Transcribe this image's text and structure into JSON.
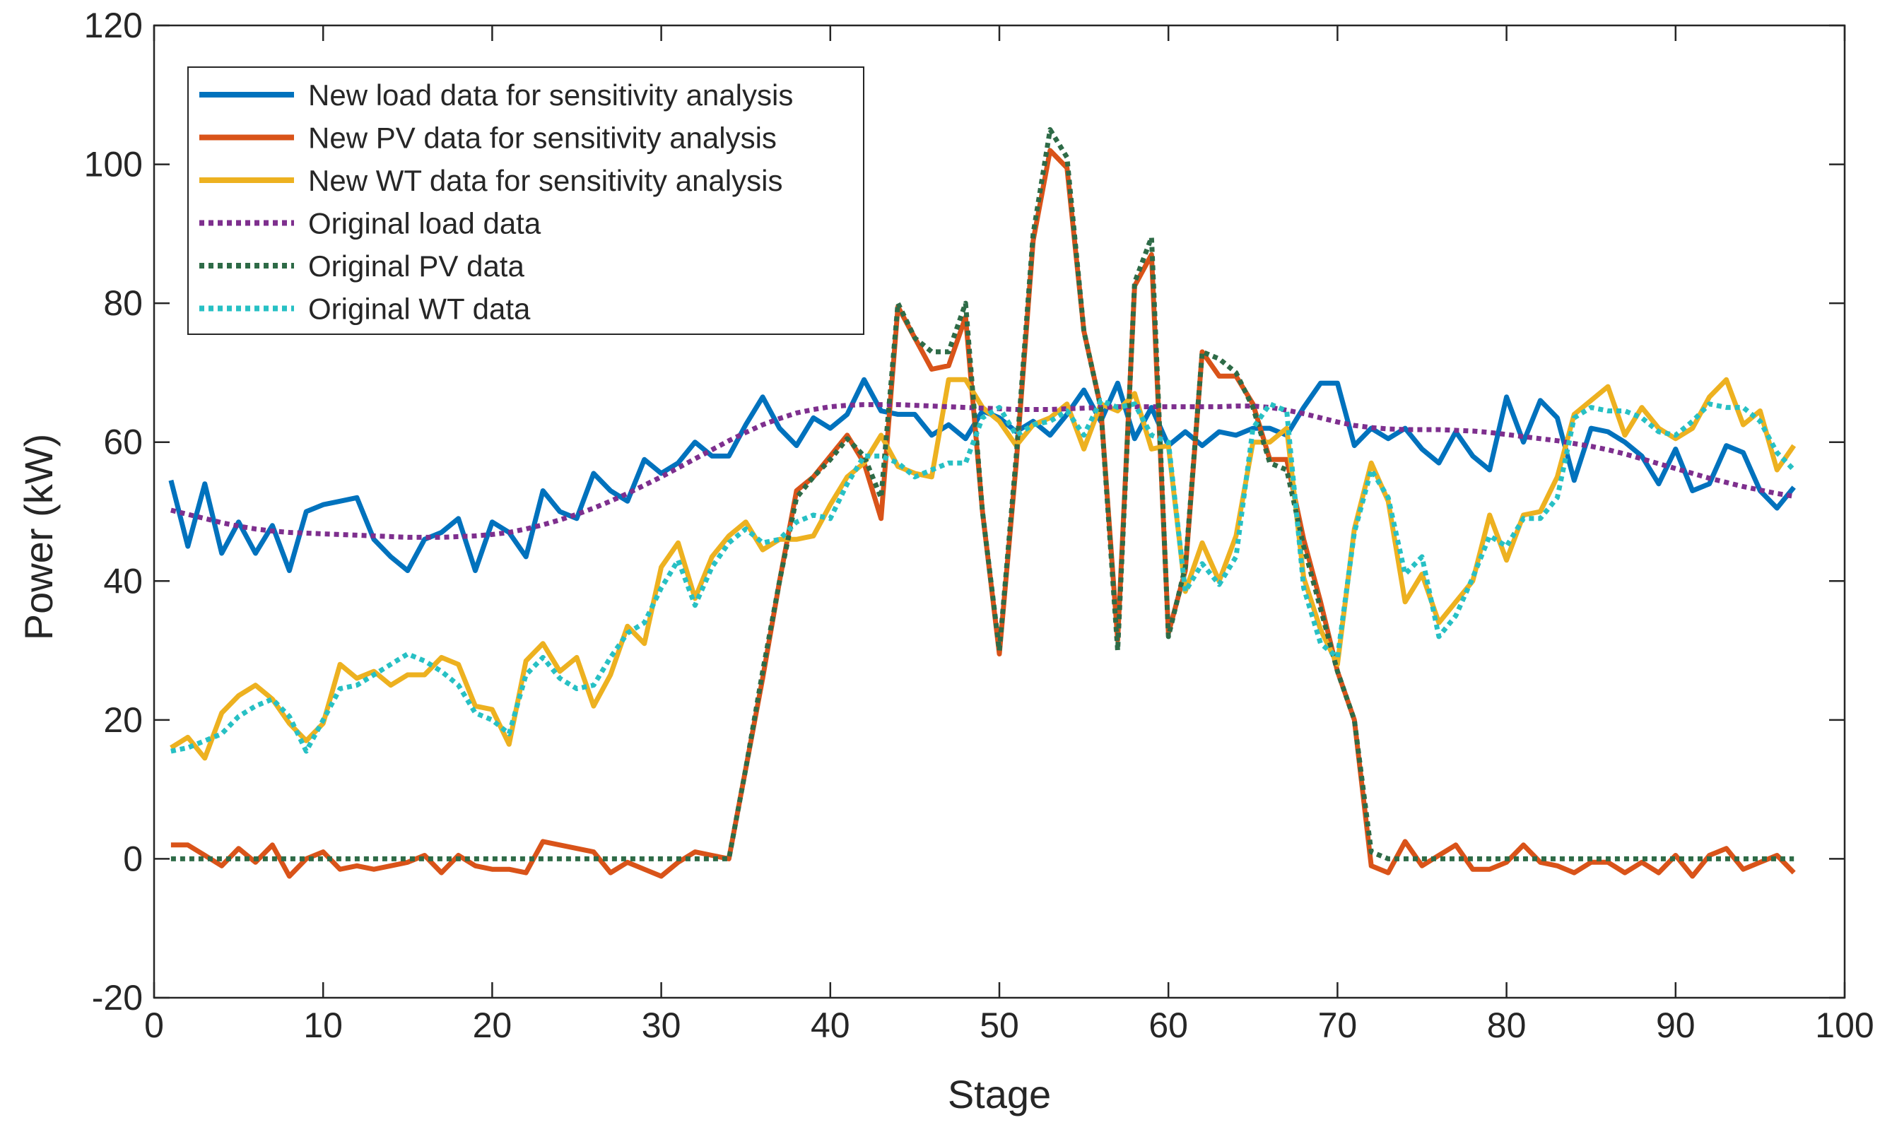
{
  "chart_data": {
    "type": "line",
    "title": "",
    "xlabel": "Stage",
    "ylabel": "Power (kW)",
    "xlim": [
      0,
      100
    ],
    "ylim": [
      -20,
      120
    ],
    "xticks": [
      0,
      10,
      20,
      30,
      40,
      50,
      60,
      70,
      80,
      90,
      100
    ],
    "yticks": [
      -20,
      0,
      20,
      40,
      60,
      80,
      100,
      120
    ],
    "grid": false,
    "legend_position": "top-left",
    "x": [
      1,
      2,
      3,
      4,
      5,
      6,
      7,
      8,
      9,
      10,
      11,
      12,
      13,
      14,
      15,
      16,
      17,
      18,
      19,
      20,
      21,
      22,
      23,
      24,
      25,
      26,
      27,
      28,
      29,
      30,
      31,
      32,
      33,
      34,
      35,
      36,
      37,
      38,
      39,
      40,
      41,
      42,
      43,
      44,
      45,
      46,
      47,
      48,
      49,
      50,
      51,
      52,
      53,
      54,
      55,
      56,
      57,
      58,
      59,
      60,
      61,
      62,
      63,
      64,
      65,
      66,
      67,
      68,
      69,
      70,
      71,
      72,
      73,
      74,
      75,
      76,
      77,
      78,
      79,
      80,
      81,
      82,
      83,
      84,
      85,
      86,
      87,
      88,
      89,
      90,
      91,
      92,
      93,
      94,
      95,
      96,
      97
    ],
    "series": [
      {
        "name": "New load data for sensitivity analysis",
        "color": "#0072BD",
        "style": "solid",
        "values": [
          54.5,
          45,
          54,
          44,
          48.5,
          44,
          48,
          41.5,
          50,
          51,
          51.5,
          52,
          46,
          43.5,
          41.5,
          46,
          47,
          49,
          41.5,
          48.5,
          47,
          43.5,
          53,
          50,
          49,
          55.5,
          53,
          51.5,
          57.5,
          55.5,
          57,
          60,
          58,
          58,
          62.5,
          66.5,
          62,
          59.5,
          63.5,
          62,
          64,
          69,
          64.5,
          64,
          64,
          61,
          62.5,
          60.5,
          64.5,
          63.5,
          61.5,
          63,
          61,
          64,
          67.5,
          63,
          68.5,
          60.5,
          65,
          59.5,
          61.5,
          59.5,
          61.5,
          61,
          62,
          62,
          61,
          65,
          68.5,
          68.5,
          59.5,
          62,
          60.5,
          62,
          59,
          57,
          61.5,
          58,
          56,
          66.5,
          60,
          66,
          63.5,
          54.5,
          62,
          61.5,
          60,
          58,
          54,
          59,
          53,
          54,
          59.5,
          58.5,
          53,
          50.5,
          53.5
        ]
      },
      {
        "name": "New PV data for sensitivity analysis",
        "color": "#D95319",
        "style": "solid",
        "values": [
          2,
          2,
          0.5,
          -1,
          1.5,
          -0.5,
          2,
          -2.5,
          0,
          1,
          -1.5,
          -1,
          -1.5,
          -1,
          -0.5,
          0.5,
          -2,
          0.5,
          -1,
          -1.5,
          -1.5,
          -2,
          2.5,
          2,
          1.5,
          1,
          -2,
          -0.5,
          -1.5,
          -2.5,
          -0.5,
          1,
          0.5,
          0,
          13,
          26,
          40,
          53,
          55,
          58,
          61,
          57,
          49,
          79.5,
          75,
          70.5,
          71,
          78,
          50,
          29.5,
          57,
          89,
          102,
          99.5,
          76,
          65,
          31.5,
          82.5,
          87,
          32.5,
          41.5,
          73,
          69.5,
          69.5,
          65.5,
          57.5,
          57.5,
          46,
          37,
          27,
          20,
          -1,
          -2,
          2.5,
          -1,
          0.5,
          2,
          -1.5,
          -1.5,
          -0.5,
          2,
          -0.5,
          -1,
          -2,
          -0.5,
          -0.5,
          -2,
          -0.5,
          -2,
          0.5,
          -2.5,
          0.5,
          1.5,
          -1.5,
          -0.5,
          0.5,
          -2
        ]
      },
      {
        "name": "New WT data for sensitivity analysis",
        "color": "#EDB120",
        "style": "solid",
        "values": [
          16,
          17.5,
          14.5,
          21,
          23.5,
          25,
          23,
          19.5,
          17,
          19.5,
          28,
          26,
          27,
          25,
          26.5,
          26.5,
          29,
          28,
          22,
          21.5,
          16.5,
          28.5,
          31,
          27,
          29,
          22,
          26.5,
          33.5,
          31,
          42,
          45.5,
          37.5,
          43.5,
          46.5,
          48.5,
          44.5,
          46,
          46,
          46.5,
          51,
          55,
          57,
          61,
          56.5,
          55.5,
          55,
          69,
          69,
          65,
          63,
          59.5,
          62.5,
          63.5,
          65.5,
          59,
          65.5,
          64.5,
          67,
          59,
          59.5,
          38.5,
          45.5,
          40,
          46.5,
          60,
          60,
          62,
          40.5,
          33,
          28,
          47.5,
          57,
          51.5,
          37,
          41,
          34,
          37,
          40,
          49.5,
          43,
          49.5,
          50,
          55,
          64,
          66,
          68,
          61,
          65,
          62,
          60.5,
          62,
          66.5,
          69,
          62.5,
          64.5,
          56,
          59.5
        ]
      },
      {
        "name": "Original load data",
        "color": "#7E2F8E",
        "style": "dotted",
        "values": [
          50.2,
          49.6,
          49,
          48.4,
          47.9,
          47.5,
          47.2,
          47,
          46.9,
          46.8,
          46.7,
          46.6,
          46.5,
          46.4,
          46.3,
          46.3,
          46.3,
          46.4,
          46.5,
          46.7,
          47,
          47.5,
          48.1,
          48.8,
          49.6,
          50.5,
          51.5,
          52.6,
          53.8,
          55,
          56.3,
          57.6,
          58.9,
          60.2,
          61.4,
          62.5,
          63.4,
          64.2,
          64.7,
          65.1,
          65.3,
          65.4,
          65.4,
          65.4,
          65.3,
          65.2,
          65.1,
          65,
          64.9,
          64.8,
          64.7,
          64.7,
          64.7,
          64.8,
          64.9,
          65,
          65.1,
          65.1,
          65.1,
          65.1,
          65.1,
          65.1,
          65.1,
          65.2,
          65.2,
          65,
          64.6,
          64.1,
          63.5,
          62.9,
          62.4,
          62.1,
          61.9,
          61.8,
          61.8,
          61.8,
          61.7,
          61.6,
          61.4,
          61.1,
          60.8,
          60.5,
          60.2,
          59.8,
          59.4,
          58.9,
          58.3,
          57.6,
          56.9,
          56.2,
          55.5,
          54.8,
          54.2,
          53.6,
          53.1,
          52.6,
          52.2
        ]
      },
      {
        "name": "Original PV data",
        "color": "#2E6B47",
        "style": "dotted",
        "values": [
          0,
          0,
          0,
          0,
          0,
          0,
          0,
          0,
          0,
          0,
          0,
          0,
          0,
          0,
          0,
          0,
          0,
          0,
          0,
          0,
          0,
          0,
          0,
          0,
          0,
          0,
          0,
          0,
          0,
          0,
          0,
          0,
          0,
          0,
          13,
          27,
          40,
          52,
          55,
          57.5,
          60.5,
          58,
          52,
          80,
          75,
          73,
          73,
          80,
          50,
          30,
          58,
          90,
          105,
          101,
          76,
          65,
          30,
          83,
          89.5,
          32,
          42,
          73,
          72,
          70,
          65,
          57,
          56,
          45,
          36,
          27,
          20,
          1,
          0,
          0,
          0,
          0,
          0,
          0,
          0,
          0,
          0,
          0,
          0,
          0,
          0,
          0,
          0,
          0,
          0,
          0,
          0,
          0,
          0,
          0,
          0,
          0,
          0
        ]
      },
      {
        "name": "Original WT data",
        "color": "#27C0C4",
        "style": "dotted",
        "values": [
          15.5,
          16,
          17,
          18,
          20.5,
          22,
          23,
          20.5,
          15.5,
          20,
          24.5,
          25,
          26.5,
          28,
          29.5,
          28.5,
          27,
          25,
          21,
          20,
          18,
          26.5,
          29,
          26,
          24.5,
          25,
          29,
          32.5,
          34,
          39,
          43,
          36.5,
          42,
          45.5,
          47.5,
          45.5,
          46,
          48.5,
          49.5,
          49,
          54,
          58,
          58,
          57,
          55,
          56,
          57,
          57,
          63.5,
          65,
          61,
          62.5,
          63,
          64.5,
          61,
          66,
          65,
          65.5,
          61,
          60,
          38.5,
          42.5,
          39.5,
          43.5,
          62,
          65.5,
          64.5,
          39,
          31,
          29,
          47,
          56,
          52,
          41,
          43.5,
          32,
          35,
          40.5,
          46.5,
          45,
          49,
          49,
          52,
          63.5,
          65,
          64.5,
          64.5,
          63.5,
          61.5,
          61,
          63,
          65.5,
          65,
          65,
          63,
          58.5,
          56
        ]
      }
    ]
  }
}
